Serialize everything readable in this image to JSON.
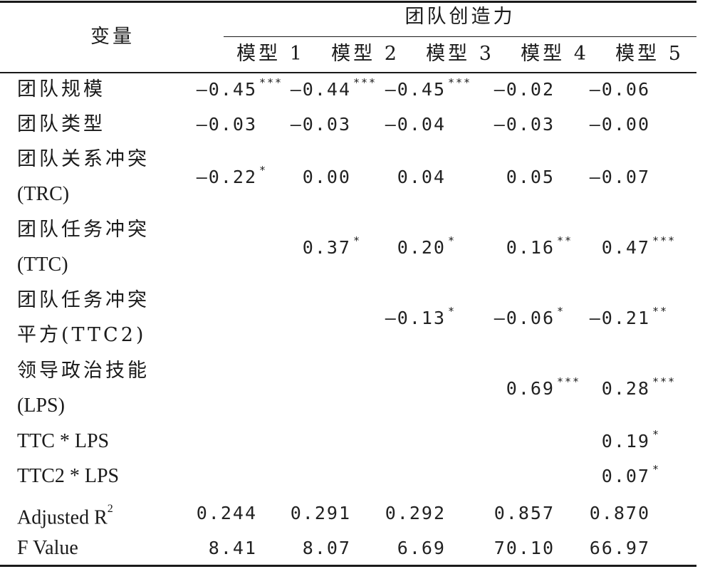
{
  "header": {
    "variable_label": "变量",
    "group_label": "团队创造力",
    "models": [
      "模型 1",
      "模型 2",
      "模型 3",
      "模型 4",
      "模型 5"
    ]
  },
  "rows": [
    {
      "label_lines": [
        "团队规模"
      ],
      "cells": [
        {
          "value": "—0.45",
          "stars": "***"
        },
        {
          "value": "—0.44",
          "stars": "***"
        },
        {
          "value": "—0.45",
          "stars": "***"
        },
        {
          "value": "—0.02",
          "stars": ""
        },
        {
          "value": "—0.06",
          "stars": ""
        }
      ]
    },
    {
      "label_lines": [
        "团队类型"
      ],
      "cells": [
        {
          "value": "—0.03",
          "stars": ""
        },
        {
          "value": "—0.03",
          "stars": ""
        },
        {
          "value": "—0.04",
          "stars": ""
        },
        {
          "value": "—0.03",
          "stars": ""
        },
        {
          "value": "—0.00",
          "stars": ""
        }
      ]
    },
    {
      "label_lines": [
        "团队关系冲突",
        "(TRC)"
      ],
      "cells": [
        {
          "value": "—0.22",
          "stars": "*"
        },
        {
          "value": "0.00",
          "stars": ""
        },
        {
          "value": "0.04",
          "stars": ""
        },
        {
          "value": "0.05",
          "stars": ""
        },
        {
          "value": "—0.07",
          "stars": ""
        }
      ]
    },
    {
      "label_lines": [
        "团队任务冲突",
        "(TTC)"
      ],
      "cells": [
        {
          "value": "",
          "stars": ""
        },
        {
          "value": "0.37",
          "stars": "*"
        },
        {
          "value": "0.20",
          "stars": "*"
        },
        {
          "value": "0.16",
          "stars": "**"
        },
        {
          "value": "0.47",
          "stars": "***"
        }
      ]
    },
    {
      "label_lines": [
        "团队任务冲突",
        "平方(TTC2)"
      ],
      "cells": [
        {
          "value": "",
          "stars": ""
        },
        {
          "value": "",
          "stars": ""
        },
        {
          "value": "—0.13",
          "stars": "*"
        },
        {
          "value": "—0.06",
          "stars": "*"
        },
        {
          "value": "—0.21",
          "stars": "**"
        }
      ]
    },
    {
      "label_lines": [
        "领导政治技能",
        "(LPS)"
      ],
      "cells": [
        {
          "value": "",
          "stars": ""
        },
        {
          "value": "",
          "stars": ""
        },
        {
          "value": "",
          "stars": ""
        },
        {
          "value": "0.69",
          "stars": "***"
        },
        {
          "value": "0.28",
          "stars": "***"
        }
      ]
    },
    {
      "label_lines": [
        "TTC * LPS"
      ],
      "cells": [
        {
          "value": "",
          "stars": ""
        },
        {
          "value": "",
          "stars": ""
        },
        {
          "value": "",
          "stars": ""
        },
        {
          "value": "",
          "stars": ""
        },
        {
          "value": "0.19",
          "stars": "*"
        }
      ]
    },
    {
      "label_lines": [
        "TTC2 * LPS"
      ],
      "cells": [
        {
          "value": "",
          "stars": ""
        },
        {
          "value": "",
          "stars": ""
        },
        {
          "value": "",
          "stars": ""
        },
        {
          "value": "",
          "stars": ""
        },
        {
          "value": "0.07",
          "stars": "*"
        }
      ]
    },
    {
      "label_lines": [
        "Adjusted R"
      ],
      "label_sup": "2",
      "cells": [
        {
          "value": "0.244",
          "stars": ""
        },
        {
          "value": "0.291",
          "stars": ""
        },
        {
          "value": "0.292",
          "stars": ""
        },
        {
          "value": "0.857",
          "stars": ""
        },
        {
          "value": "0.870",
          "stars": ""
        }
      ]
    },
    {
      "label_lines": [
        "F Value"
      ],
      "cells": [
        {
          "value": "8.41",
          "stars": ""
        },
        {
          "value": "8.07",
          "stars": ""
        },
        {
          "value": "6.69",
          "stars": ""
        },
        {
          "value": "70.10",
          "stars": ""
        },
        {
          "value": "66.97",
          "stars": ""
        }
      ]
    }
  ]
}
